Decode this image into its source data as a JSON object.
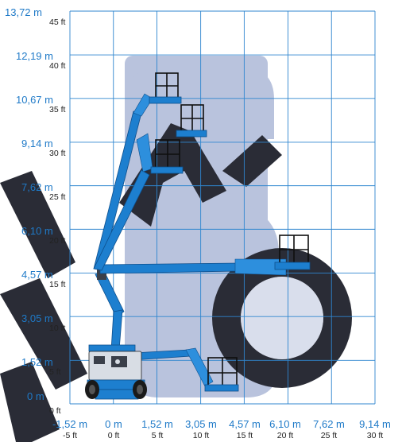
{
  "diagram": {
    "type": "working-range",
    "height_axis": [
      {
        "m": "13,72 m",
        "ft": "45 ft",
        "value_m": 13.72,
        "value_ft": 45
      },
      {
        "m": "12,19 m",
        "ft": "40 ft",
        "value_m": 12.19,
        "value_ft": 40
      },
      {
        "m": "10,67 m",
        "ft": "35 ft",
        "value_m": 10.67,
        "value_ft": 35
      },
      {
        "m": "9,14 m",
        "ft": "30 ft",
        "value_m": 9.14,
        "value_ft": 30
      },
      {
        "m": "7,62 m",
        "ft": "25 ft",
        "value_m": 7.62,
        "value_ft": 25
      },
      {
        "m": "6,10 m",
        "ft": "20 ft",
        "value_m": 6.1,
        "value_ft": 20
      },
      {
        "m": "4,57 m",
        "ft": "15 ft",
        "value_m": 4.57,
        "value_ft": 15
      },
      {
        "m": "3,05 m",
        "ft": "10 ft",
        "value_m": 3.05,
        "value_ft": 10
      },
      {
        "m": "1,52 m",
        "ft": "5 ft",
        "value_m": 1.52,
        "value_ft": 5
      },
      {
        "m": "0 m",
        "ft": "0 ft",
        "value_m": 0,
        "value_ft": 0
      }
    ],
    "reach_axis": [
      {
        "m": "-1,52 m",
        "ft": "-5 ft",
        "value_m": -1.52,
        "value_ft": -5
      },
      {
        "m": "0 m",
        "ft": "0 ft",
        "value_m": 0,
        "value_ft": 0
      },
      {
        "m": "1,52 m",
        "ft": "5 ft",
        "value_m": 1.52,
        "value_ft": 5
      },
      {
        "m": "3,05 m",
        "ft": "10 ft",
        "value_m": 3.05,
        "value_ft": 10
      },
      {
        "m": "4,57 m",
        "ft": "15 ft",
        "value_m": 4.57,
        "value_ft": 15
      },
      {
        "m": "6,10 m",
        "ft": "20 ft",
        "value_m": 6.1,
        "value_ft": 20
      },
      {
        "m": "7,62 m",
        "ft": "25 ft",
        "value_m": 7.62,
        "value_ft": 25
      },
      {
        "m": "9,14 m",
        "ft": "30 ft",
        "value_m": 9.14,
        "value_ft": 30
      }
    ],
    "watermark": "MASO",
    "colors": {
      "grid": "#2f86cf",
      "metric_label": "#1f7ac8",
      "imperial_label": "#222222",
      "boom": "#1d7fcf",
      "watermark": "#b9c3dd",
      "watermark_dark": "#2a2c36"
    }
  }
}
